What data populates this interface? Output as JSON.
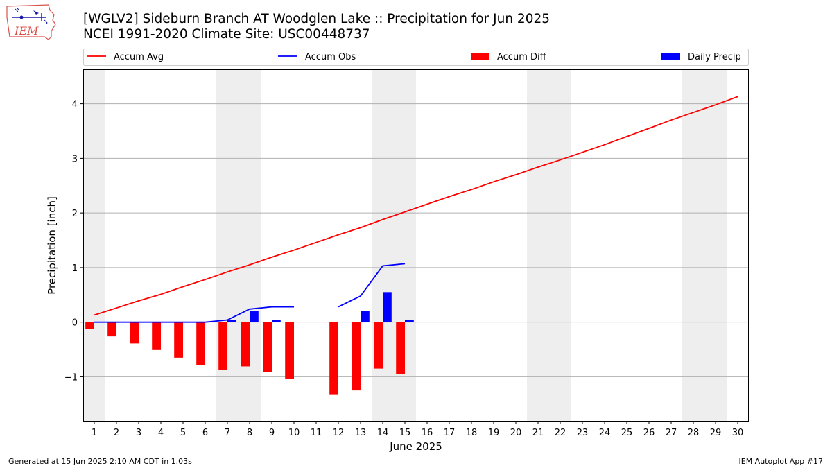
{
  "header": {
    "title_line1": "[WGLV2] Sideburn Branch  AT Woodglen Lake :: Precipitation for Jun 2025",
    "title_line2": "NCEI 1991-2020 Climate Site: USC00448737",
    "logo_text": "IEM",
    "logo_icon": "iowa-state-weather-logo-icon"
  },
  "footer": {
    "generated": "Generated at 15 Jun 2025 2:10 AM CDT in 1.03s",
    "app": "IEM Autoplot App #17"
  },
  "colors": {
    "accum_avg": "#ff0000",
    "accum_obs": "#0000ff",
    "accum_diff": "#ff0000",
    "daily_precip": "#0000ff",
    "weekend_shade": "#eeeeee",
    "grid": "#b0b0b0"
  },
  "chart_data": {
    "type": "bar",
    "xlabel": "June 2025",
    "ylabel": "Precipitation [inch]",
    "xlim": [
      0.5,
      30.5
    ],
    "ylim": [
      -1.82,
      4.63
    ],
    "x_ticks": [
      1,
      2,
      3,
      4,
      5,
      6,
      7,
      8,
      9,
      10,
      11,
      12,
      13,
      14,
      15,
      16,
      17,
      18,
      19,
      20,
      21,
      22,
      23,
      24,
      25,
      26,
      27,
      28,
      29,
      30
    ],
    "x_tick_labels": [
      "1",
      "2",
      "3",
      "4",
      "5",
      "6",
      "7",
      "8",
      "9",
      "10",
      "11",
      "12",
      "13",
      "14",
      "15",
      "16",
      "17",
      "18",
      "19",
      "20",
      "21",
      "22",
      "23",
      "24",
      "25",
      "26",
      "27",
      "28",
      "29",
      "30"
    ],
    "y_ticks": [
      -1,
      0,
      1,
      2,
      3,
      4
    ],
    "y_tick_labels": [
      "−1",
      "0",
      "1",
      "2",
      "3",
      "4"
    ],
    "grid": "horizontal",
    "legend_position": "top",
    "weekend_bands": [
      [
        0.5,
        1.5
      ],
      [
        6.5,
        8.5
      ],
      [
        13.5,
        15.5
      ],
      [
        20.5,
        22.5
      ],
      [
        27.5,
        29.5
      ]
    ],
    "series": [
      {
        "name": "Accum Avg",
        "kind": "line",
        "x": [
          1,
          2,
          3,
          4,
          5,
          6,
          7,
          8,
          9,
          10,
          11,
          12,
          13,
          14,
          15,
          16,
          17,
          18,
          19,
          20,
          21,
          22,
          23,
          24,
          25,
          26,
          27,
          28,
          29,
          30
        ],
        "values": [
          0.13,
          0.26,
          0.39,
          0.51,
          0.65,
          0.78,
          0.92,
          1.05,
          1.19,
          1.32,
          1.46,
          1.6,
          1.73,
          1.88,
          2.02,
          2.16,
          2.3,
          2.43,
          2.57,
          2.7,
          2.84,
          2.97,
          3.11,
          3.25,
          3.4,
          3.55,
          3.7,
          3.84,
          3.98,
          4.13
        ]
      },
      {
        "name": "Accum Obs",
        "kind": "line",
        "x": [
          1,
          2,
          3,
          4,
          5,
          6,
          7,
          8,
          9,
          10,
          11,
          12,
          13,
          14,
          15
        ],
        "values": [
          0.0,
          0.0,
          0.0,
          0.0,
          0.0,
          0.0,
          0.04,
          0.24,
          0.28,
          0.28,
          null,
          0.28,
          0.48,
          1.03,
          1.07
        ]
      },
      {
        "name": "Accum Diff",
        "kind": "bar",
        "offset": -0.2,
        "x": [
          1,
          2,
          3,
          4,
          5,
          6,
          7,
          8,
          9,
          10,
          11,
          12,
          13,
          14,
          15
        ],
        "values": [
          -0.13,
          -0.26,
          -0.39,
          -0.51,
          -0.65,
          -0.78,
          -0.88,
          -0.81,
          -0.91,
          -1.04,
          null,
          -1.32,
          -1.25,
          -0.85,
          -0.95
        ]
      },
      {
        "name": "Daily Precip",
        "kind": "bar",
        "offset": 0.2,
        "x": [
          1,
          2,
          3,
          4,
          5,
          6,
          7,
          8,
          9,
          10,
          11,
          12,
          13,
          14,
          15
        ],
        "values": [
          0,
          0,
          0,
          0,
          0,
          0,
          0.04,
          0.2,
          0.04,
          0,
          null,
          0,
          0.2,
          0.55,
          0.04
        ]
      }
    ]
  }
}
